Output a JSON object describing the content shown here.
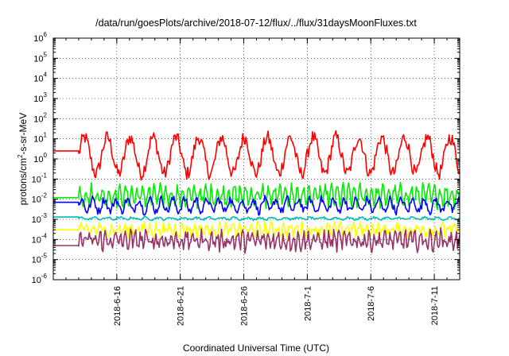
{
  "chart_data": {
    "type": "line",
    "title": "/data/run/goesPlots/archive/2018-07-12/flux/../flux/31daysMoonFluxes.txt",
    "xlabel": "Coordinated Universal Time (UTC)",
    "ylabel": "protons/cm2-s-sr-MeV",
    "ylabel_parts": {
      "pre": "protons/cm",
      "sup": "2",
      "post": "-s-sr-MeV"
    },
    "yscale": "log",
    "ylim": [
      1e-06,
      1000000.0
    ],
    "y_ticks": [
      {
        "value": 1e-06,
        "base": "10",
        "exp": "-6"
      },
      {
        "value": 1e-05,
        "base": "10",
        "exp": "-5"
      },
      {
        "value": 0.0001,
        "base": "10",
        "exp": "-4"
      },
      {
        "value": 0.001,
        "base": "10",
        "exp": "-3"
      },
      {
        "value": 0.01,
        "base": "10",
        "exp": "-2"
      },
      {
        "value": 0.1,
        "base": "10",
        "exp": "-1"
      },
      {
        "value": 1,
        "base": "10",
        "exp": "0"
      },
      {
        "value": 10,
        "base": "10",
        "exp": "1"
      },
      {
        "value": 100,
        "base": "10",
        "exp": "2"
      },
      {
        "value": 1000,
        "base": "10",
        "exp": "3"
      },
      {
        "value": 10000,
        "base": "10",
        "exp": "4"
      },
      {
        "value": 100000,
        "base": "10",
        "exp": "5"
      },
      {
        "value": 1000000,
        "base": "10",
        "exp": "6"
      }
    ],
    "xlim": [
      "2018-06-11",
      "2018-07-13"
    ],
    "x_ticks": [
      "2018-6-16",
      "2018-6-21",
      "2018-6-26",
      "2018-7-1",
      "2018-7-6",
      "2018-7-11"
    ],
    "grid": true,
    "series": [
      {
        "color": "#ff0000",
        "start": "2018-06-13",
        "initial": 2.5,
        "base": 1.5,
        "depth": 0.9,
        "period_days": 1.8,
        "noise": 0.35
      },
      {
        "color": "#00ee00",
        "start": "2018-06-13",
        "initial": 0.012,
        "base": 0.015,
        "depth": 0.4,
        "period_days": 0.45,
        "noise": 0.3
      },
      {
        "color": "#0000ff",
        "start": "2018-06-13",
        "initial": 0.007,
        "base": 0.005,
        "depth": 0.3,
        "period_days": 0.9,
        "noise": 0.2
      },
      {
        "color": "#00bbbb",
        "start": "2018-06-13",
        "initial": 0.0013,
        "base": 0.0011,
        "depth": 0.05,
        "period_days": 1.0,
        "noise": 0.05
      },
      {
        "color": "#ffff00",
        "start": "2018-06-13",
        "initial": 0.0003,
        "base": 0.0003,
        "depth": 0.2,
        "period_days": 0.5,
        "noise": 0.25
      },
      {
        "color": "#993366",
        "start": "2018-06-13",
        "initial": 5e-05,
        "base": 9e-05,
        "depth": 0.3,
        "period_days": 0.4,
        "noise": 0.35
      }
    ]
  }
}
